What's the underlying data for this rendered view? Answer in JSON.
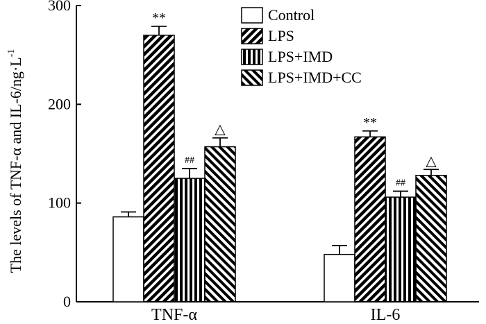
{
  "chart_data": {
    "type": "bar",
    "ylabel": "The levels of TNF-α and IL-6/ng·L",
    "ylabel_superscript": "-1",
    "categories": [
      "TNF-α",
      "IL-6"
    ],
    "ylim": [
      0,
      300
    ],
    "yticks": [
      0,
      100,
      200,
      300
    ],
    "grid": false,
    "legend_position": "top-right",
    "series": [
      {
        "name": "Control",
        "values": [
          86,
          48
        ],
        "errors": [
          5,
          9
        ],
        "pattern": "none",
        "annotations": [
          "",
          ""
        ]
      },
      {
        "name": "LPS",
        "values": [
          270,
          167
        ],
        "errors": [
          9,
          6
        ],
        "pattern": "diag-forward",
        "annotations": [
          "**",
          "**"
        ]
      },
      {
        "name": "LPS+IMD",
        "values": [
          125,
          106
        ],
        "errors": [
          10,
          6
        ],
        "pattern": "vertical",
        "annotations": [
          "##",
          "##"
        ]
      },
      {
        "name": "LPS+IMD+CC",
        "values": [
          157,
          128
        ],
        "errors": [
          9,
          6
        ],
        "pattern": "diag-backward",
        "annotations": [
          "△",
          "△"
        ]
      }
    ]
  }
}
